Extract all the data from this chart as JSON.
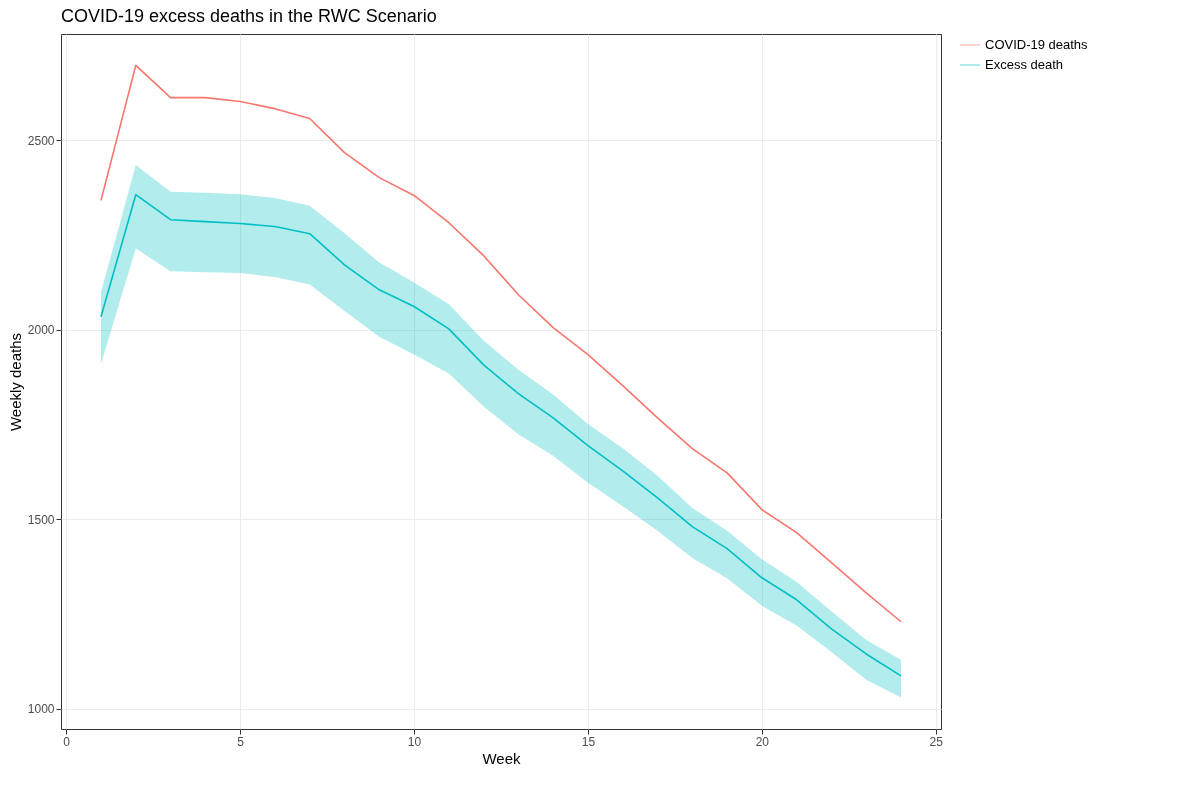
{
  "chart_data": {
    "type": "line",
    "title": "COVID-19 excess deaths in the RWC Scenario",
    "xlabel": "Week",
    "ylabel": "Weekly deaths",
    "x": [
      1,
      2,
      3,
      4,
      5,
      6,
      7,
      8,
      9,
      10,
      11,
      12,
      13,
      14,
      15,
      16,
      17,
      18,
      19,
      20,
      21,
      22,
      23,
      24
    ],
    "series": [
      {
        "name": "COVID-19 deaths",
        "color": "#f8766d",
        "values": [
          2342,
          2698,
          2613,
          2613,
          2603,
          2584,
          2558,
          2468,
          2402,
          2355,
          2283,
          2196,
          2093,
          2006,
          1935,
          1853,
          1768,
          1687,
          1623,
          1526,
          1465,
          1386,
          1306,
          1230
        ]
      },
      {
        "name": "Excess death",
        "color": "#00bfc4",
        "values": [
          2035,
          2357,
          2291,
          2286,
          2281,
          2273,
          2254,
          2172,
          2106,
          2062,
          2003,
          1908,
          1832,
          1768,
          1695,
          1628,
          1557,
          1481,
          1423,
          1346,
          1288,
          1211,
          1145,
          1087
        ],
        "lower": [
          1910,
          2215,
          2155,
          2152,
          2150,
          2140,
          2120,
          2050,
          1982,
          1935,
          1885,
          1798,
          1725,
          1668,
          1597,
          1535,
          1470,
          1398,
          1345,
          1272,
          1220,
          1150,
          1077,
          1030
        ],
        "upper": [
          2100,
          2435,
          2365,
          2362,
          2358,
          2348,
          2328,
          2255,
          2178,
          2125,
          2068,
          1972,
          1895,
          1830,
          1752,
          1688,
          1615,
          1530,
          1470,
          1395,
          1335,
          1258,
          1182,
          1130
        ]
      }
    ],
    "xlim": [
      -0.15,
      25.15
    ],
    "xticks": [
      0,
      5,
      10,
      15,
      20,
      25
    ],
    "ylim": [
      947,
      2781
    ],
    "yticks": [
      1000,
      1500,
      2000,
      2500
    ],
    "grid": true,
    "legend": "right",
    "line_style": "solid"
  }
}
